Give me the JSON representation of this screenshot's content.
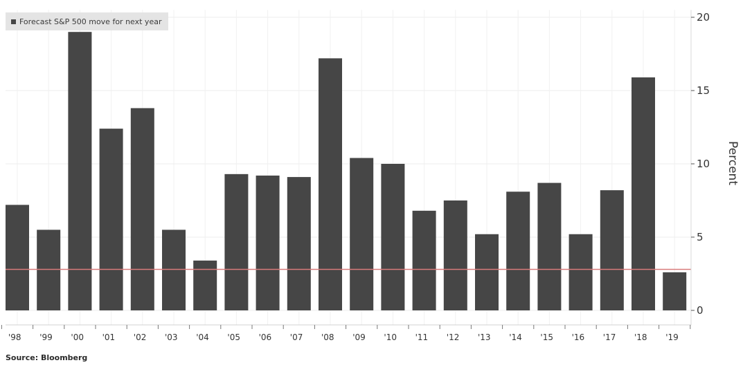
{
  "chart_data": {
    "type": "bar",
    "categories": [
      "'98",
      "'99",
      "'00",
      "'01",
      "'02",
      "'03",
      "'04",
      "'05",
      "'06",
      "'07",
      "'08",
      "'09",
      "'10",
      "'11",
      "'12",
      "'13",
      "'14",
      "'15",
      "'16",
      "'17",
      "'18",
      "'19"
    ],
    "series": [
      {
        "name": "Forecast S&P 500 move for next year",
        "values": [
          7.2,
          5.5,
          19.0,
          12.4,
          13.8,
          5.5,
          3.4,
          9.3,
          9.2,
          9.1,
          17.2,
          10.4,
          10.0,
          6.8,
          7.5,
          5.2,
          8.1,
          8.7,
          5.2,
          8.2,
          15.9,
          2.6
        ],
        "color": "#464646"
      }
    ],
    "reference_line": {
      "value": 2.8,
      "color": "#d97b7b"
    },
    "ylabel": "Percent",
    "ylim": [
      -1,
      20.5
    ],
    "yticks": [
      0,
      5,
      10,
      15,
      20
    ],
    "y_axis_side": "right",
    "grid": true,
    "legend_placement": "top-left",
    "source": "Source: Bloomberg"
  }
}
